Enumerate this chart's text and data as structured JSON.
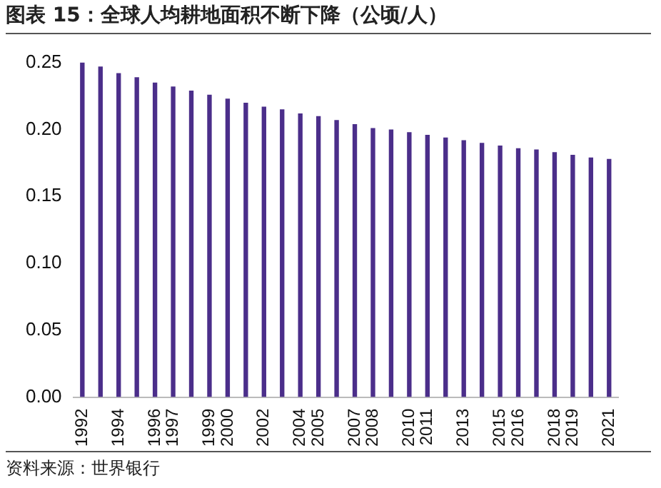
{
  "chart_data": {
    "type": "bar",
    "title": "图表 15：全球人均耕地面积不断下降（公顷/人）",
    "categories": [
      "1992",
      null,
      "1994",
      null,
      "1996",
      "1997",
      null,
      "1999",
      "2000",
      null,
      "2002",
      null,
      "2004",
      "2005",
      null,
      "2007",
      "2008",
      null,
      "2010",
      "2011",
      null,
      "2013",
      null,
      "2015",
      "2016",
      null,
      "2018",
      "2019",
      null,
      "2021"
    ],
    "values": [
      0.25,
      0.247,
      0.242,
      0.239,
      0.235,
      0.232,
      0.229,
      0.226,
      0.223,
      0.22,
      0.217,
      0.215,
      0.212,
      0.21,
      0.207,
      0.204,
      0.201,
      0.2,
      0.198,
      0.196,
      0.194,
      0.192,
      0.19,
      0.188,
      0.186,
      0.185,
      0.183,
      0.181,
      0.179,
      0.178
    ],
    "color": "#4b2e8a",
    "ylim": [
      0,
      0.25
    ],
    "yticks": [
      {
        "value": 0,
        "label": "0.00"
      },
      {
        "value": 0.05,
        "label": "0.05"
      },
      {
        "value": 0.1,
        "label": "0.10"
      },
      {
        "value": 0.15,
        "label": "0.15"
      },
      {
        "value": 0.2,
        "label": "0.20"
      },
      {
        "value": 0.25,
        "label": "0.25"
      }
    ],
    "grid": false,
    "legend": false,
    "annotations": [
      "资料来源：世界银行"
    ]
  }
}
